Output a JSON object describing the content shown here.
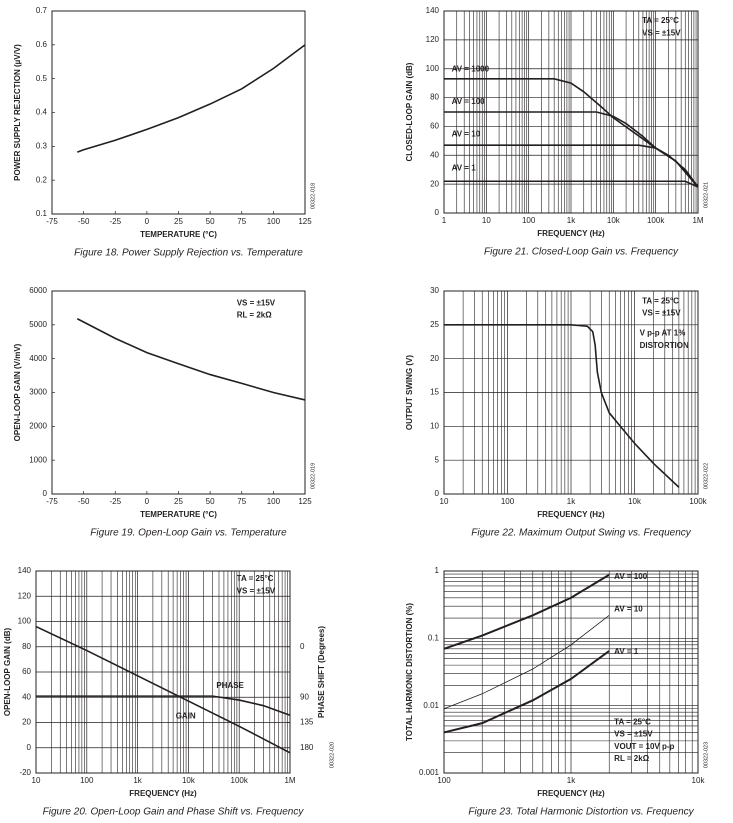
{
  "chart_data": [
    {
      "type": "line",
      "title": "Figure 18. Power Supply Rejection vs. Temperature",
      "xlabel": "TEMPERATURE (°C)",
      "ylabel": "POWER SUPPLY REJECTION (µV/V)",
      "code": "00322-018",
      "xscale": "linear",
      "yscale": "linear",
      "grid": false,
      "xlim": [
        -75,
        125
      ],
      "xticks": [
        -75,
        -50,
        -25,
        0,
        25,
        50,
        75,
        100,
        125
      ],
      "ylim": [
        0.1,
        0.7
      ],
      "yticks": [
        0.1,
        0.2,
        0.3,
        0.4,
        0.5,
        0.6,
        0.7
      ],
      "series": [
        {
          "color": "#231f20",
          "x": [
            -55,
            -50,
            -25,
            0,
            25,
            50,
            75,
            100,
            125
          ],
          "values": [
            0.283,
            0.29,
            0.318,
            0.35,
            0.385,
            0.425,
            0.47,
            0.53,
            0.6
          ]
        }
      ],
      "annotations": []
    },
    {
      "type": "line",
      "title": "Figure 21. Closed-Loop Gain vs. Frequency",
      "xlabel": "FREQUENCY (Hz)",
      "ylabel": "CLOSED-LOOP GAIN (dB)",
      "code": "00322-021",
      "xscale": "log",
      "yscale": "linear",
      "grid": true,
      "xlim": [
        1,
        1000000
      ],
      "xticks": [
        1,
        10,
        100,
        {
          "value": 1000,
          "label": "1k"
        },
        {
          "value": 10000,
          "label": "10k"
        },
        {
          "value": 100000,
          "label": "100k"
        },
        {
          "value": 1000000,
          "label": "1M"
        }
      ],
      "ylim": [
        0,
        140
      ],
      "yticks": [
        0,
        20,
        40,
        60,
        80,
        100,
        120,
        140
      ],
      "series": [
        {
          "name": "AV = 1000",
          "color": "#231f20",
          "x": [
            1,
            400,
            1000,
            2000,
            5000,
            10000,
            100000,
            300000,
            1000000
          ],
          "values": [
            93,
            93,
            90,
            84,
            74,
            66,
            45,
            36,
            18
          ]
        },
        {
          "name": "AV = 100",
          "color": "#231f20",
          "x": [
            1,
            4000,
            10000,
            20000,
            50000,
            100000,
            300000,
            1000000
          ],
          "values": [
            70,
            70,
            67,
            62,
            53,
            45,
            36,
            18
          ]
        },
        {
          "name": "AV = 10",
          "color": "#231f20",
          "x": [
            1,
            40000,
            100000,
            200000,
            500000,
            1000000
          ],
          "values": [
            47,
            47,
            45,
            40,
            30,
            18
          ]
        },
        {
          "name": "AV = 1",
          "color": "#231f20",
          "x": [
            1,
            500000,
            1000000
          ],
          "values": [
            22,
            22,
            18
          ]
        }
      ],
      "annotations": [
        "TA = 25°C",
        "VS = ±15V"
      ]
    },
    {
      "type": "line",
      "title": "Figure 19. Open-Loop Gain vs. Temperature",
      "xlabel": "TEMPERATURE (°C)",
      "ylabel": "OPEN-LOOP GAIN (V/mV)",
      "code": "00322-019",
      "xscale": "linear",
      "yscale": "linear",
      "grid": false,
      "xlim": [
        -75,
        125
      ],
      "xticks": [
        -75,
        -50,
        -25,
        0,
        25,
        50,
        75,
        100,
        125
      ],
      "ylim": [
        0,
        6000
      ],
      "yticks": [
        0,
        1000,
        2000,
        3000,
        4000,
        5000,
        6000
      ],
      "series": [
        {
          "color": "#231f20",
          "x": [
            -55,
            -25,
            0,
            25,
            50,
            75,
            100,
            125
          ],
          "values": [
            5180,
            4600,
            4180,
            3850,
            3530,
            3270,
            3000,
            2780
          ]
        }
      ],
      "annotations": [
        "VS = ±15V",
        "RL = 2kΩ"
      ]
    },
    {
      "type": "line",
      "title": "Figure 22. Maximum Output Swing vs. Frequency",
      "xlabel": "FREQUENCY (Hz)",
      "ylabel": "OUTPUT SWING (V)",
      "code": "00322-022",
      "xscale": "log",
      "yscale": "linear",
      "grid": true,
      "xlim": [
        10,
        100000
      ],
      "xticks": [
        10,
        100,
        {
          "value": 1000,
          "label": "1k"
        },
        {
          "value": 10000,
          "label": "10k"
        },
        {
          "value": 100000,
          "label": "100k"
        }
      ],
      "ylim": [
        0,
        30
      ],
      "yticks": [
        0,
        5,
        10,
        15,
        20,
        25,
        30
      ],
      "series": [
        {
          "color": "#231f20",
          "x": [
            10,
            1000,
            1800,
            2200,
            2400,
            2600,
            3000,
            4000,
            6000,
            10000,
            20000,
            50000
          ],
          "values": [
            25,
            25,
            24.8,
            24,
            22,
            18,
            15,
            12,
            10,
            7.5,
            4.5,
            1
          ]
        }
      ],
      "annotations": [
        "TA = 25°C",
        "VS = ±15V",
        "V p-p AT 1%",
        "DISTORTION"
      ]
    },
    {
      "type": "line",
      "title": "Figure 20. Open-Loop Gain and Phase Shift vs. Frequency",
      "xlabel": "FREQUENCY (Hz)",
      "ylabel": "OPEN-LOOP GAIN (dB)",
      "y2label": "PHASE SHIFT (Degrees)",
      "code": "00322-020",
      "xscale": "log",
      "yscale": "linear",
      "grid": true,
      "xlim": [
        10,
        1000000
      ],
      "xticks": [
        10,
        100,
        {
          "value": 1000,
          "label": "1k"
        },
        {
          "value": 10000,
          "label": "10k"
        },
        {
          "value": 100000,
          "label": "100k"
        },
        {
          "value": 1000000,
          "label": "1M"
        }
      ],
      "ylim": [
        -20,
        140
      ],
      "yticks": [
        -20,
        0,
        20,
        40,
        60,
        80,
        100,
        120,
        140
      ],
      "y2lim": [
        225,
        -135
      ],
      "y2ticks": [
        0,
        90,
        135,
        180
      ],
      "series": [
        {
          "name": "GAIN",
          "color": "#231f20",
          "x": [
            10,
            100,
            1000,
            10000,
            100000,
            1000000
          ],
          "values": [
            96,
            77,
            57,
            37,
            17,
            -4
          ]
        },
        {
          "name": "PHASE",
          "color": "#231f20",
          "axis": "y2",
          "x": [
            10,
            30000,
            100000,
            300000,
            1000000
          ],
          "values": [
            88,
            88,
            95,
            105,
            122
          ]
        }
      ],
      "annotations": [
        "TA = 25°C",
        "VS = ±15V"
      ]
    },
    {
      "type": "line",
      "title": "Figure 23. Total Harmonic Distortion vs. Frequency",
      "xlabel": "FREQUENCY (Hz)",
      "ylabel": "TOTAL HARMONIC DISTORTION (%)",
      "code": "00322-023",
      "xscale": "log",
      "yscale": "log",
      "grid": true,
      "xlim": [
        100,
        10000
      ],
      "xticks": [
        100,
        {
          "value": 1000,
          "label": "1k"
        },
        {
          "value": 10000,
          "label": "10k"
        }
      ],
      "ylim": [
        0.001,
        1
      ],
      "yticks": [
        0.001,
        0.01,
        0.1,
        1
      ],
      "series": [
        {
          "name": "AV = 100",
          "color": "#231f20",
          "width": 2,
          "x": [
            100,
            200,
            500,
            1000,
            2000
          ],
          "values": [
            0.07,
            0.11,
            0.22,
            0.4,
            0.88
          ]
        },
        {
          "name": "AV = 10",
          "color": "#231f20",
          "width": 0.8,
          "x": [
            100,
            200,
            500,
            1000,
            2000
          ],
          "values": [
            0.009,
            0.015,
            0.035,
            0.08,
            0.22
          ]
        },
        {
          "name": "AV = 1",
          "color": "#231f20",
          "width": 2,
          "x": [
            100,
            200,
            500,
            1000,
            2000
          ],
          "values": [
            0.004,
            0.0055,
            0.012,
            0.025,
            0.065
          ]
        }
      ],
      "annotations": [
        "TA = 25°C",
        "VS = ±15V",
        "VOUT = 10V p-p",
        "RL = 2kΩ"
      ]
    }
  ]
}
